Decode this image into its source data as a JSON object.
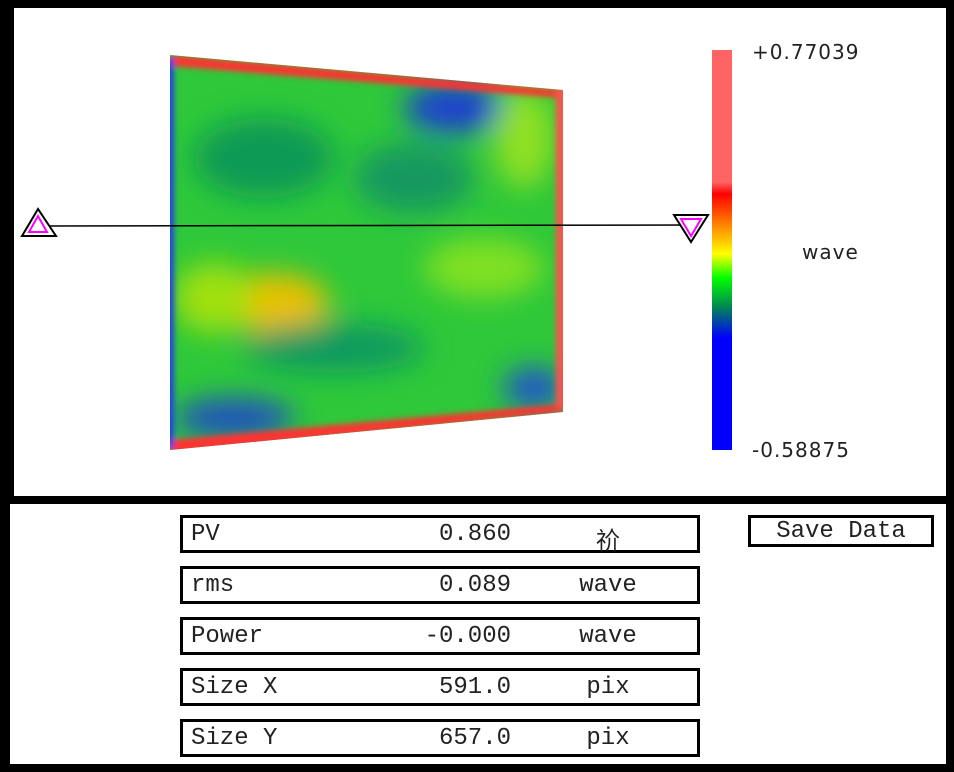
{
  "colorbar": {
    "max_label": "+0.77039",
    "min_label": "-0.58875",
    "unit_label": "wave",
    "colors": [
      "#ff6464",
      "#ff0000",
      "#ff9900",
      "#ffff00",
      "#00ff00",
      "#008060",
      "#0000ff"
    ]
  },
  "stats": [
    {
      "label": "PV",
      "value": "0.860",
      "unit": "祄"
    },
    {
      "label": "rms",
      "value": "0.089",
      "unit": "wave"
    },
    {
      "label": "Power",
      "value": "-0.000",
      "unit": "wave"
    },
    {
      "label": "Size X",
      "value": "591.0",
      "unit": "pix"
    },
    {
      "label": "Size Y",
      "value": "657.0",
      "unit": "pix"
    }
  ],
  "save_button": "Save Data"
}
